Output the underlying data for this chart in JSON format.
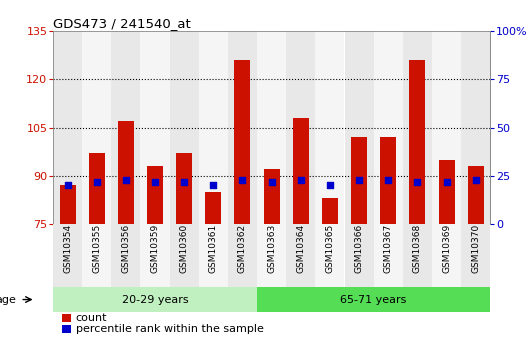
{
  "title": "GDS473 / 241540_at",
  "samples": [
    "GSM10354",
    "GSM10355",
    "GSM10356",
    "GSM10359",
    "GSM10360",
    "GSM10361",
    "GSM10362",
    "GSM10363",
    "GSM10364",
    "GSM10365",
    "GSM10366",
    "GSM10367",
    "GSM10368",
    "GSM10369",
    "GSM10370"
  ],
  "count_values": [
    87,
    97,
    107,
    93,
    97,
    85,
    126,
    92,
    108,
    83,
    102,
    102,
    126,
    95,
    93
  ],
  "percentile_values": [
    20,
    22,
    23,
    22,
    22,
    20,
    23,
    22,
    23,
    20,
    23,
    23,
    22,
    22,
    23
  ],
  "group1_label": "20-29 years",
  "group2_label": "65-71 years",
  "group1_count": 7,
  "group2_count": 8,
  "ylim_left": [
    75,
    135
  ],
  "ylim_right": [
    0,
    100
  ],
  "yticks_left": [
    75,
    90,
    105,
    120,
    135
  ],
  "yticks_right": [
    0,
    25,
    50,
    75,
    100
  ],
  "bar_color": "#cc1100",
  "dot_color": "#0000cc",
  "group1_bg": "#c0f0c0",
  "group2_bg": "#55dd55",
  "col_bg_even": "#e8e8e8",
  "col_bg_odd": "#f5f5f5",
  "bar_width": 0.55,
  "base_value": 75,
  "legend_count_label": "count",
  "legend_pct_label": "percentile rank within the sample",
  "left_tick_color": "#cc1100",
  "right_tick_color": "#0000cc"
}
